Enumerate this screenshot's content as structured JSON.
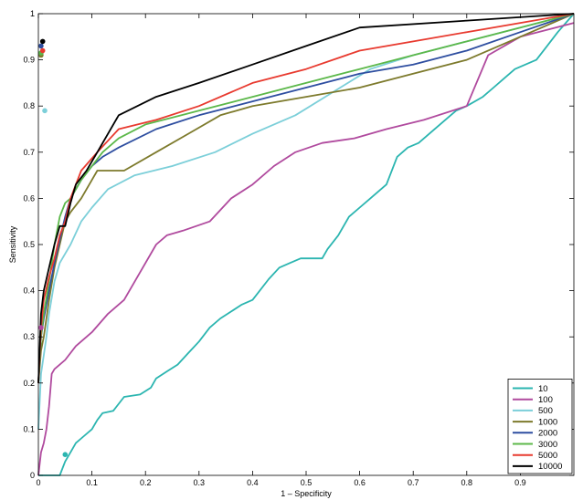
{
  "chart_data": {
    "type": "line",
    "title": "",
    "xlabel": "1 – Specificity",
    "ylabel": "Sensitivity",
    "xlim": [
      0,
      1
    ],
    "ylim": [
      0,
      1
    ],
    "xticks": [
      0,
      0.1,
      0.2,
      0.3,
      0.4,
      0.5,
      0.6,
      0.7,
      0.8,
      0.9
    ],
    "xtick_labels": [
      "0",
      "0.1",
      "0.2",
      "0.3",
      "0.4",
      "0.5",
      "0.6",
      "0.7",
      "0.8",
      "0.9"
    ],
    "yticks": [
      0,
      0.1,
      0.2,
      0.3,
      0.4,
      0.5,
      0.6,
      0.7,
      0.8,
      0.9,
      1
    ],
    "ytick_labels": [
      "0",
      "0.1",
      "0.2",
      "0.3",
      "0.4",
      "0.5",
      "0.6",
      "0.7",
      "0.8",
      "0.9",
      "1"
    ],
    "grid": false,
    "legend_position": "bottom-right",
    "series": [
      {
        "name": "10",
        "color": "#2bb5b0",
        "points": [
          [
            0,
            0
          ],
          [
            0.04,
            0
          ],
          [
            0.05,
            0.03
          ],
          [
            0.06,
            0.05
          ],
          [
            0.07,
            0.07
          ],
          [
            0.08,
            0.08
          ],
          [
            0.09,
            0.09
          ],
          [
            0.1,
            0.1
          ],
          [
            0.11,
            0.12
          ],
          [
            0.12,
            0.135
          ],
          [
            0.14,
            0.14
          ],
          [
            0.16,
            0.17
          ],
          [
            0.19,
            0.175
          ],
          [
            0.21,
            0.19
          ],
          [
            0.22,
            0.21
          ],
          [
            0.24,
            0.225
          ],
          [
            0.26,
            0.24
          ],
          [
            0.28,
            0.265
          ],
          [
            0.3,
            0.29
          ],
          [
            0.32,
            0.32
          ],
          [
            0.34,
            0.34
          ],
          [
            0.36,
            0.355
          ],
          [
            0.38,
            0.37
          ],
          [
            0.4,
            0.38
          ],
          [
            0.43,
            0.425
          ],
          [
            0.45,
            0.45
          ],
          [
            0.47,
            0.46
          ],
          [
            0.49,
            0.47
          ],
          [
            0.53,
            0.47
          ],
          [
            0.54,
            0.49
          ],
          [
            0.56,
            0.52
          ],
          [
            0.58,
            0.56
          ],
          [
            0.6,
            0.58
          ],
          [
            0.62,
            0.6
          ],
          [
            0.65,
            0.63
          ],
          [
            0.67,
            0.69
          ],
          [
            0.69,
            0.71
          ],
          [
            0.71,
            0.72
          ],
          [
            0.73,
            0.74
          ],
          [
            0.75,
            0.76
          ],
          [
            0.78,
            0.79
          ],
          [
            0.8,
            0.8
          ],
          [
            0.83,
            0.82
          ],
          [
            0.85,
            0.84
          ],
          [
            0.87,
            0.86
          ],
          [
            0.89,
            0.88
          ],
          [
            0.93,
            0.9
          ],
          [
            0.95,
            0.93
          ],
          [
            0.97,
            0.96
          ],
          [
            1,
            1
          ]
        ]
      },
      {
        "name": "100",
        "color": "#b04a9e",
        "points": [
          [
            0,
            0
          ],
          [
            0.005,
            0.05
          ],
          [
            0.01,
            0.07
          ],
          [
            0.015,
            0.1
          ],
          [
            0.02,
            0.15
          ],
          [
            0.025,
            0.22
          ],
          [
            0.03,
            0.23
          ],
          [
            0.05,
            0.25
          ],
          [
            0.07,
            0.28
          ],
          [
            0.1,
            0.31
          ],
          [
            0.13,
            0.35
          ],
          [
            0.16,
            0.38
          ],
          [
            0.19,
            0.44
          ],
          [
            0.22,
            0.5
          ],
          [
            0.24,
            0.52
          ],
          [
            0.27,
            0.53
          ],
          [
            0.32,
            0.55
          ],
          [
            0.36,
            0.6
          ],
          [
            0.4,
            0.63
          ],
          [
            0.44,
            0.67
          ],
          [
            0.48,
            0.7
          ],
          [
            0.53,
            0.72
          ],
          [
            0.59,
            0.73
          ],
          [
            0.65,
            0.75
          ],
          [
            0.72,
            0.77
          ],
          [
            0.8,
            0.8
          ],
          [
            0.84,
            0.91
          ],
          [
            0.9,
            0.95
          ],
          [
            1,
            0.98
          ]
        ]
      },
      {
        "name": "500",
        "color": "#7ccfd9",
        "points": [
          [
            0,
            0.1
          ],
          [
            0.005,
            0.22
          ],
          [
            0.01,
            0.26
          ],
          [
            0.015,
            0.3
          ],
          [
            0.02,
            0.35
          ],
          [
            0.03,
            0.42
          ],
          [
            0.04,
            0.46
          ],
          [
            0.06,
            0.5
          ],
          [
            0.08,
            0.55
          ],
          [
            0.1,
            0.58
          ],
          [
            0.13,
            0.62
          ],
          [
            0.18,
            0.65
          ],
          [
            0.25,
            0.67
          ],
          [
            0.33,
            0.7
          ],
          [
            0.4,
            0.74
          ],
          [
            0.48,
            0.78
          ],
          [
            0.55,
            0.83
          ],
          [
            0.62,
            0.88
          ],
          [
            0.7,
            0.91
          ],
          [
            0.8,
            0.94
          ],
          [
            0.9,
            0.97
          ],
          [
            1,
            1
          ]
        ]
      },
      {
        "name": "1000",
        "color": "#7d7a2c",
        "points": [
          [
            0,
            0.2
          ],
          [
            0.005,
            0.27
          ],
          [
            0.01,
            0.3
          ],
          [
            0.02,
            0.38
          ],
          [
            0.03,
            0.45
          ],
          [
            0.04,
            0.5
          ],
          [
            0.05,
            0.55
          ],
          [
            0.06,
            0.57
          ],
          [
            0.08,
            0.6
          ],
          [
            0.1,
            0.64
          ],
          [
            0.11,
            0.66
          ],
          [
            0.16,
            0.66
          ],
          [
            0.22,
            0.7
          ],
          [
            0.28,
            0.74
          ],
          [
            0.34,
            0.78
          ],
          [
            0.4,
            0.8
          ],
          [
            0.5,
            0.82
          ],
          [
            0.6,
            0.84
          ],
          [
            0.7,
            0.87
          ],
          [
            0.8,
            0.9
          ],
          [
            0.9,
            0.95
          ],
          [
            1,
            1
          ]
        ]
      },
      {
        "name": "2000",
        "color": "#2e4ea0",
        "points": [
          [
            0,
            0.2
          ],
          [
            0.005,
            0.3
          ],
          [
            0.01,
            0.34
          ],
          [
            0.02,
            0.4
          ],
          [
            0.03,
            0.46
          ],
          [
            0.04,
            0.51
          ],
          [
            0.05,
            0.56
          ],
          [
            0.06,
            0.6
          ],
          [
            0.08,
            0.64
          ],
          [
            0.1,
            0.67
          ],
          [
            0.12,
            0.69
          ],
          [
            0.15,
            0.71
          ],
          [
            0.22,
            0.75
          ],
          [
            0.3,
            0.78
          ],
          [
            0.4,
            0.81
          ],
          [
            0.5,
            0.84
          ],
          [
            0.6,
            0.87
          ],
          [
            0.7,
            0.89
          ],
          [
            0.8,
            0.92
          ],
          [
            0.9,
            0.96
          ],
          [
            1,
            1
          ]
        ]
      },
      {
        "name": "3000",
        "color": "#5cb84a",
        "points": [
          [
            0,
            0.2
          ],
          [
            0.005,
            0.3
          ],
          [
            0.01,
            0.35
          ],
          [
            0.02,
            0.42
          ],
          [
            0.03,
            0.5
          ],
          [
            0.04,
            0.56
          ],
          [
            0.05,
            0.59
          ],
          [
            0.06,
            0.6
          ],
          [
            0.08,
            0.64
          ],
          [
            0.1,
            0.67
          ],
          [
            0.12,
            0.7
          ],
          [
            0.15,
            0.73
          ],
          [
            0.2,
            0.76
          ],
          [
            0.3,
            0.79
          ],
          [
            0.4,
            0.82
          ],
          [
            0.5,
            0.85
          ],
          [
            0.6,
            0.88
          ],
          [
            0.7,
            0.91
          ],
          [
            0.8,
            0.94
          ],
          [
            0.9,
            0.97
          ],
          [
            1,
            1
          ]
        ]
      },
      {
        "name": "5000",
        "color": "#e83a2f",
        "points": [
          [
            0,
            0.2
          ],
          [
            0.005,
            0.32
          ],
          [
            0.01,
            0.38
          ],
          [
            0.02,
            0.43
          ],
          [
            0.03,
            0.47
          ],
          [
            0.04,
            0.52
          ],
          [
            0.05,
            0.55
          ],
          [
            0.06,
            0.6
          ],
          [
            0.08,
            0.66
          ],
          [
            0.11,
            0.7
          ],
          [
            0.15,
            0.75
          ],
          [
            0.22,
            0.77
          ],
          [
            0.3,
            0.8
          ],
          [
            0.4,
            0.85
          ],
          [
            0.5,
            0.88
          ],
          [
            0.6,
            0.92
          ],
          [
            0.7,
            0.94
          ],
          [
            0.8,
            0.96
          ],
          [
            0.9,
            0.98
          ],
          [
            1,
            1
          ]
        ]
      },
      {
        "name": "10000",
        "color": "#000000",
        "points": [
          [
            0,
            0.2
          ],
          [
            0.005,
            0.35
          ],
          [
            0.01,
            0.4
          ],
          [
            0.02,
            0.45
          ],
          [
            0.03,
            0.5
          ],
          [
            0.04,
            0.54
          ],
          [
            0.05,
            0.54
          ],
          [
            0.06,
            0.59
          ],
          [
            0.07,
            0.63
          ],
          [
            0.09,
            0.66
          ],
          [
            0.11,
            0.7
          ],
          [
            0.15,
            0.78
          ],
          [
            0.22,
            0.82
          ],
          [
            0.3,
            0.85
          ],
          [
            0.4,
            0.89
          ],
          [
            0.5,
            0.93
          ],
          [
            0.6,
            0.97
          ],
          [
            0.8,
            0.985
          ],
          [
            1,
            1
          ]
        ]
      }
    ],
    "markers": [
      {
        "series": "10",
        "x": 0.05,
        "y": 0.045
      },
      {
        "series": "100",
        "x": 0.005,
        "y": 0.32
      },
      {
        "series": "500",
        "x": 0.012,
        "y": 0.79
      },
      {
        "series": "1000",
        "x": 0.005,
        "y": 0.91
      },
      {
        "series": "2000",
        "x": 0.005,
        "y": 0.93
      },
      {
        "series": "3000",
        "x": 0.005,
        "y": 0.915
      },
      {
        "series": "5000",
        "x": 0.008,
        "y": 0.92
      },
      {
        "series": "10000",
        "x": 0.008,
        "y": 0.94
      }
    ]
  }
}
